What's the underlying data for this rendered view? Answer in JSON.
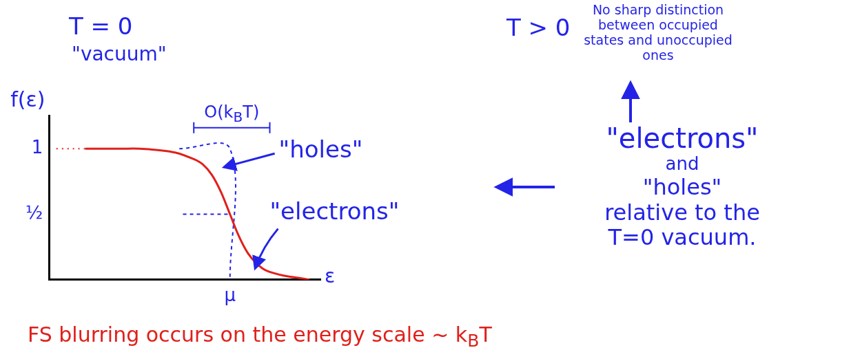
{
  "chart_data": {
    "type": "line",
    "x_label": "ε",
    "y_label": "f(ε)",
    "xlim": [
      0,
      7.5
    ],
    "xticks": [
      {
        "value": 5,
        "label": "μ"
      }
    ],
    "ylim": [
      0,
      1.25
    ],
    "yticks": [
      {
        "value": 0.5,
        "label": "½"
      },
      1
    ],
    "grid": false,
    "series": [
      {
        "color": "#e0201b",
        "line_style": "solid",
        "x": [
          1,
          1.5,
          2,
          2.5,
          3,
          3.5,
          4,
          4.25,
          4.5,
          4.75,
          5,
          5.25,
          5.5,
          5.75,
          6,
          6.5,
          7,
          7.2
        ],
        "values": [
          1,
          1,
          1,
          1,
          0.99,
          0.97,
          0.92,
          0.88,
          0.8,
          0.67,
          0.5,
          0.33,
          0.2,
          0.12,
          0.07,
          0.03,
          0.01,
          0
        ]
      },
      {
        "color": "#e0201b",
        "line_style": "dotted",
        "x": [
          0.2,
          1
        ],
        "values": [
          1,
          1
        ]
      },
      {
        "color": "#2323e8",
        "line_style": "dashed",
        "x": [
          3.6,
          5,
          5
        ],
        "values": [
          1,
          1,
          0
        ]
      },
      {
        "color": "#2323e8",
        "line_style": "dashed",
        "x": [
          3.7,
          5
        ],
        "values": [
          0.5,
          0.5
        ]
      }
    ],
    "annotations": [
      "T = 0",
      "\"vacuum\"",
      "T > 0",
      "No sharp distinction between occupied states and unoccupied ones",
      "O(kBT)",
      "\"holes\"",
      "\"electrons\"",
      "\"electrons\"",
      "and",
      "\"holes\"",
      "relative to the",
      "T=0 vacuum.",
      "FS blurring occurs on the energy scale ~ kBT"
    ]
  }
}
